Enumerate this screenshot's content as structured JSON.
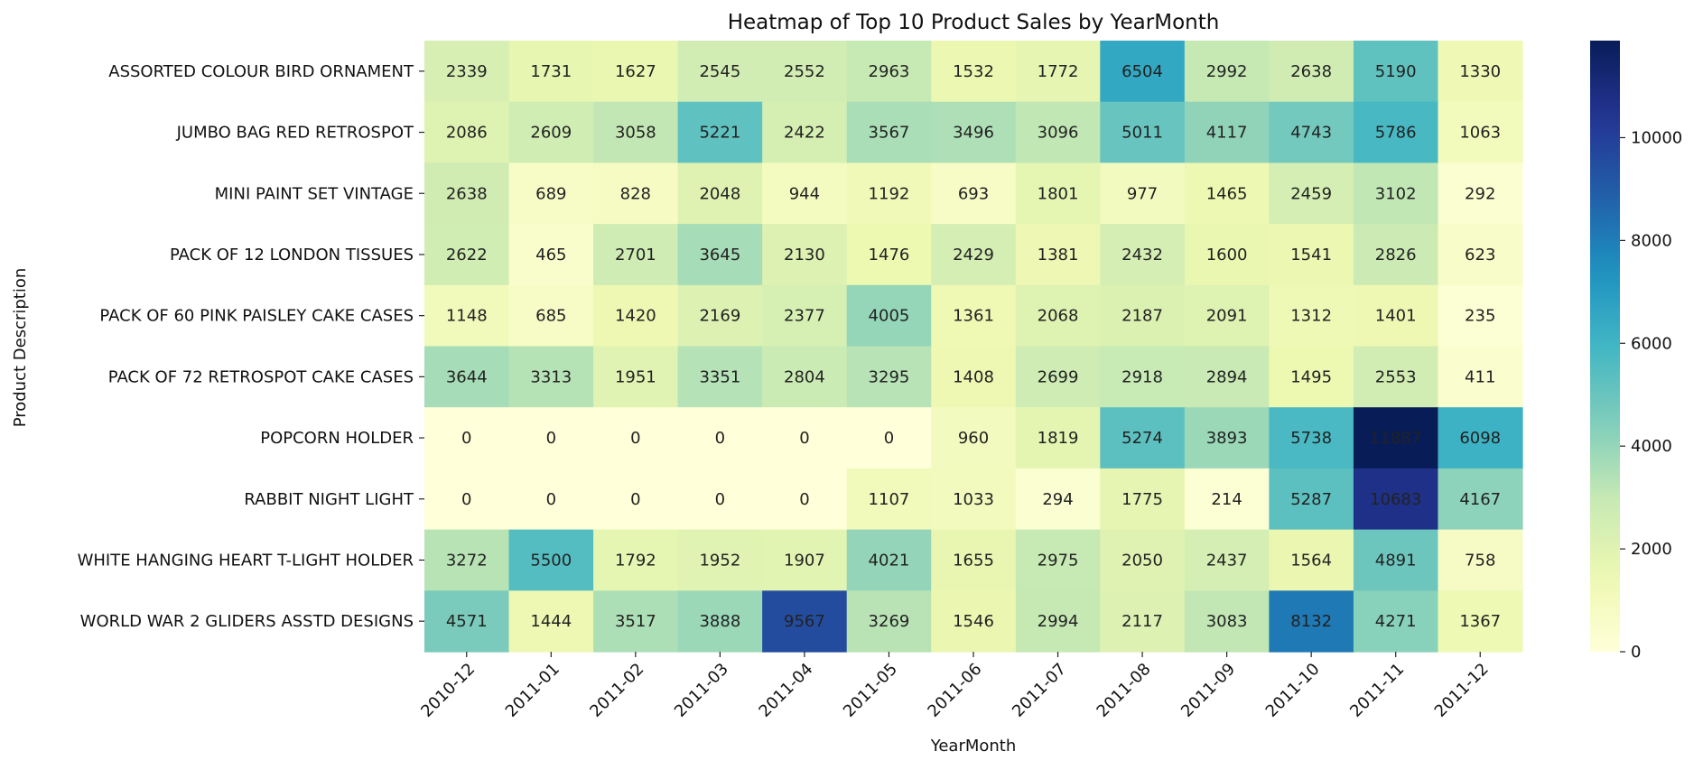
{
  "chart_data": {
    "type": "heatmap",
    "title": "Heatmap of Top 10 Product Sales by YearMonth",
    "xlabel": "YearMonth",
    "ylabel": "Product Description",
    "colormap": "YlGnBu",
    "colorbar": {
      "range": [
        0,
        11887
      ],
      "ticks": [
        0,
        2000,
        4000,
        6000,
        8000,
        10000
      ]
    },
    "x": [
      "2010-12",
      "2011-01",
      "2011-02",
      "2011-03",
      "2011-04",
      "2011-05",
      "2011-06",
      "2011-07",
      "2011-08",
      "2011-09",
      "2011-10",
      "2011-11",
      "2011-12"
    ],
    "y": [
      "ASSORTED COLOUR BIRD ORNAMENT",
      "JUMBO BAG RED RETROSPOT",
      "MINI PAINT SET VINTAGE ",
      "PACK OF 12 LONDON TISSUES ",
      "PACK OF 60 PINK PAISLEY CAKE CASES",
      "PACK OF 72 RETROSPOT CAKE CASES",
      "POPCORN HOLDER",
      "RABBIT NIGHT LIGHT",
      "WHITE HANGING HEART T-LIGHT HOLDER",
      "WORLD WAR 2 GLIDERS ASSTD DESIGNS"
    ],
    "values": [
      [
        2339,
        1731,
        1627,
        2545,
        2552,
        2963,
        1532,
        1772,
        6504,
        2992,
        2638,
        5190,
        1330
      ],
      [
        2086,
        2609,
        3058,
        5221,
        2422,
        3567,
        3496,
        3096,
        5011,
        4117,
        4743,
        5786,
        1063
      ],
      [
        2638,
        689,
        828,
        2048,
        944,
        1192,
        693,
        1801,
        977,
        1465,
        2459,
        3102,
        292
      ],
      [
        2622,
        465,
        2701,
        3645,
        2130,
        1476,
        2429,
        1381,
        2432,
        1600,
        1541,
        2826,
        623
      ],
      [
        1148,
        685,
        1420,
        2169,
        2377,
        4005,
        1361,
        2068,
        2187,
        2091,
        1312,
        1401,
        235
      ],
      [
        3644,
        3313,
        1951,
        3351,
        2804,
        3295,
        1408,
        2699,
        2918,
        2894,
        1495,
        2553,
        411
      ],
      [
        0,
        0,
        0,
        0,
        0,
        0,
        960,
        1819,
        5274,
        3893,
        5738,
        11887,
        6098
      ],
      [
        0,
        0,
        0,
        0,
        0,
        1107,
        1033,
        294,
        1775,
        214,
        5287,
        10683,
        4167
      ],
      [
        3272,
        5500,
        1792,
        1952,
        1907,
        4021,
        1655,
        2975,
        2050,
        2437,
        1564,
        4891,
        758
      ],
      [
        4571,
        1444,
        3517,
        3888,
        9567,
        3269,
        1546,
        2994,
        2117,
        3083,
        8132,
        4271,
        1367
      ]
    ]
  }
}
